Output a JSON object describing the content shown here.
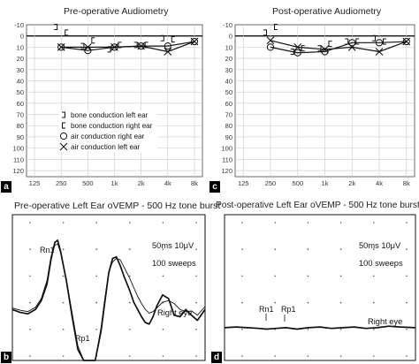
{
  "chart_data": [
    {
      "id": "a",
      "type": "line",
      "title": "Pre-operative Audiometry",
      "badge": "a",
      "y_tick_labels": [
        "-10",
        "0",
        "10",
        "20",
        "30",
        "40",
        "50",
        "60",
        "70",
        "80",
        "90",
        "100",
        "110",
        "120"
      ],
      "x_tick_labels": [
        "125",
        "250",
        "500",
        "1k",
        "2k",
        "4k",
        "8k"
      ],
      "ylim": [
        -10,
        120
      ],
      "y_inverted": true,
      "grid": true,
      "series": [
        {
          "name": "air conduction right ear",
          "marker": "circle",
          "x": [
            "250",
            "500",
            "1k",
            "2k",
            "4k",
            "8k"
          ],
          "values": [
            10,
            13,
            10,
            9,
            9,
            5
          ]
        },
        {
          "name": "air conduction left ear",
          "marker": "x",
          "x": [
            "250",
            "500",
            "1k",
            "2k",
            "4k",
            "8k"
          ],
          "values": [
            10,
            10,
            10,
            9,
            14,
            5
          ]
        },
        {
          "name": "bone conduction left ear",
          "marker": "bracket-left",
          "x": [
            "250",
            "500",
            "1k",
            "2k",
            "4k"
          ],
          "values": [
            -8,
            9,
            12,
            8,
            2
          ]
        },
        {
          "name": "bone conduction right ear",
          "marker": "bracket-right",
          "x": [
            "250",
            "500",
            "1k",
            "2k",
            "4k"
          ],
          "values": [
            -3,
            4,
            8,
            8,
            3
          ]
        }
      ],
      "legend": {
        "placement": "center",
        "entries": [
          {
            "marker": "bracket-left",
            "label": "bone conduction left ear"
          },
          {
            "marker": "bracket-right",
            "label": "bone conduction right ear"
          },
          {
            "marker": "circle",
            "label": "air conduction right ear"
          },
          {
            "marker": "x",
            "label": "air conduction left ear"
          }
        ]
      }
    },
    {
      "id": "c",
      "type": "line",
      "title": "Post-operative Audiometry",
      "badge": "c",
      "y_tick_labels": [
        "-10",
        "0",
        "10",
        "20",
        "30",
        "40",
        "50",
        "60",
        "70",
        "80",
        "90",
        "100",
        "110",
        "120"
      ],
      "x_tick_labels": [
        "125",
        "250",
        "500",
        "1k",
        "2k",
        "4k",
        "8k"
      ],
      "ylim": [
        -10,
        120
      ],
      "y_inverted": true,
      "grid": true,
      "series": [
        {
          "name": "air conduction right ear",
          "marker": "circle",
          "x": [
            "250",
            "500",
            "1k",
            "2k",
            "4k",
            "8k"
          ],
          "values": [
            10,
            15,
            14,
            6,
            6,
            5
          ]
        },
        {
          "name": "air conduction left ear",
          "marker": "x",
          "x": [
            "250",
            "500",
            "1k",
            "2k",
            "4k",
            "8k"
          ],
          "values": [
            4,
            10,
            12,
            10,
            14,
            5
          ]
        },
        {
          "name": "bone conduction left ear",
          "marker": "bracket-left",
          "x": [
            "250",
            "500",
            "1k",
            "2k",
            "4k"
          ],
          "values": [
            -3,
            14,
            11,
            5,
            2
          ]
        },
        {
          "name": "bone conduction right ear",
          "marker": "bracket-right",
          "x": [
            "250",
            "500",
            "1k",
            "2k",
            "4k"
          ],
          "values": [
            -8,
            11,
            7,
            5,
            5
          ]
        }
      ]
    },
    {
      "id": "b",
      "type": "line",
      "title": "Pre-operative Left Ear oVEMP - 500 Hz tone burst",
      "badge": "b",
      "scale_label": "50ms 10μV",
      "sweeps_label": "100 sweeps",
      "eye_label": "Right eye",
      "peak_labels": [
        "Rn1",
        "Rp1"
      ],
      "grid": "dotted",
      "ylim": [
        -100,
        100
      ],
      "xlim": [
        0,
        100
      ],
      "series": [
        {
          "name": "trace-1",
          "x": [
            0,
            4,
            8,
            12,
            15,
            18,
            20,
            22,
            23.5,
            25,
            28,
            31,
            34,
            37,
            40,
            43,
            46,
            48,
            50,
            52,
            54,
            56,
            58,
            61,
            63,
            65,
            67,
            69,
            71,
            73,
            75,
            78,
            81,
            84,
            87,
            90,
            93,
            96,
            100
          ],
          "values": [
            -30,
            -34,
            -36,
            -30,
            -18,
            5,
            38,
            62,
            65,
            50,
            10,
            -40,
            -85,
            -100,
            -100,
            -100,
            -60,
            -20,
            20,
            40,
            42,
            30,
            15,
            -5,
            -20,
            -30,
            -40,
            -48,
            -50,
            -40,
            -25,
            -10,
            -15,
            -38,
            -40,
            -30,
            -38,
            -45,
            -30
          ]
        },
        {
          "name": "trace-2",
          "x": [
            0,
            4,
            8,
            12,
            15,
            18,
            20,
            22,
            23.5,
            25,
            28,
            31,
            34,
            37,
            40,
            43,
            46,
            48,
            50,
            52,
            54,
            56,
            58,
            61,
            63,
            65,
            67,
            69,
            71,
            73,
            75,
            78,
            81,
            84,
            87,
            90,
            93,
            96,
            100
          ],
          "values": [
            -28,
            -31,
            -33,
            -27,
            -15,
            10,
            42,
            58,
            60,
            48,
            12,
            -35,
            -80,
            -100,
            -100,
            -100,
            -55,
            -15,
            22,
            35,
            40,
            38,
            28,
            12,
            0,
            -12,
            -22,
            -30,
            -35,
            -33,
            -28,
            -20,
            -18,
            -22,
            -30,
            -33,
            -32,
            -38,
            -26
          ]
        }
      ]
    },
    {
      "id": "d",
      "type": "line",
      "title": "Post-operative Left Ear oVEMP - 500 Hz tone burst",
      "badge": "d",
      "scale_label": "50ms 10μV",
      "sweeps_label": "100 sweeps",
      "eye_label": "Right eye",
      "peak_labels": [
        "Rn1",
        "Rp1"
      ],
      "grid": "dotted",
      "ylim": [
        -100,
        100
      ],
      "xlim": [
        0,
        100
      ],
      "series": [
        {
          "name": "trace-1",
          "x": [
            0,
            6,
            12,
            18,
            22,
            27,
            32,
            38,
            44,
            50,
            56,
            62,
            68,
            74,
            80,
            86,
            92,
            100
          ],
          "values": [
            -55,
            -54,
            -55,
            -56,
            -57,
            -56,
            -55,
            -57,
            -55,
            -54,
            -56,
            -55,
            -54,
            -56,
            -55,
            -53,
            -54,
            -55
          ]
        }
      ]
    }
  ]
}
